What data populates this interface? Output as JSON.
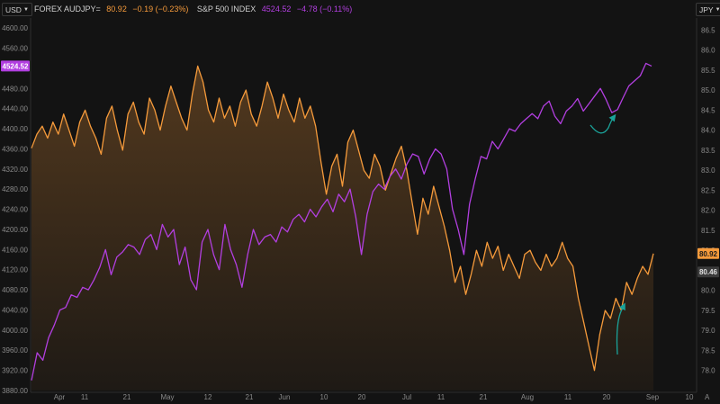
{
  "header": {
    "left_unit": "USD",
    "right_unit": "JPY",
    "corner_letter": "A"
  },
  "legend": {
    "aud": {
      "name": "FOREX AUDJPY=",
      "value": "80.92",
      "change": "−0.19 (−0.23%)",
      "color": "#f59a3b"
    },
    "spx": {
      "name": "S&P 500 INDEX",
      "value": "4524.52",
      "change": "−4.78 (−0.11%)",
      "color": "#b23fe0"
    }
  },
  "badges": {
    "spx_last": "4524.52",
    "aud_last": "80.92",
    "aud_ref": "80.46"
  },
  "annotation_color": "#1aa39a",
  "chart_data": {
    "type": "line",
    "x_labels": [
      "Apr",
      "11",
      "21",
      "May",
      "12",
      "21",
      "Jun",
      "10",
      "20",
      "Jul",
      "11",
      "21",
      "Aug",
      "11",
      "20",
      "Sep",
      "10"
    ],
    "left_axis": {
      "ticks": [
        "3880.00",
        "3920.00",
        "3960.00",
        "4000.00",
        "4040.00",
        "4080.00",
        "4120.00",
        "4160.00",
        "4200.00",
        "4240.00",
        "4280.00",
        "4320.00",
        "4360.00",
        "4400.00",
        "4440.00",
        "4480.00",
        "4520.00",
        "4560.00",
        "4600.00"
      ],
      "range": [
        3880,
        4620
      ]
    },
    "right_axis": {
      "ticks": [
        "78.0",
        "78.5",
        "79.0",
        "79.5",
        "80.0",
        "80.5",
        "81.0",
        "81.5",
        "82.0",
        "82.5",
        "83.0",
        "83.5",
        "84.0",
        "84.5",
        "85.0",
        "85.5",
        "86.0",
        "86.5"
      ],
      "range": [
        77.5,
        86.8
      ]
    },
    "series": [
      {
        "name": "FOREX AUDJPY=",
        "axis": "right",
        "color": "#f59a3b",
        "fill": true,
        "values": [
          83.55,
          83.9,
          84.1,
          83.8,
          84.2,
          83.9,
          84.4,
          84.0,
          83.6,
          84.2,
          84.5,
          84.1,
          83.8,
          83.4,
          84.3,
          84.6,
          84.0,
          83.5,
          84.4,
          84.7,
          84.2,
          83.9,
          84.8,
          84.5,
          84.0,
          84.6,
          85.1,
          84.7,
          84.3,
          84.0,
          84.9,
          85.6,
          85.2,
          84.5,
          84.2,
          84.8,
          84.3,
          84.6,
          84.1,
          84.7,
          85.0,
          84.4,
          84.1,
          84.6,
          85.2,
          84.8,
          84.3,
          84.9,
          84.5,
          84.2,
          84.8,
          84.3,
          84.6,
          84.1,
          83.2,
          82.4,
          83.1,
          83.4,
          82.6,
          83.7,
          84.0,
          83.5,
          83.0,
          82.8,
          83.4,
          83.1,
          82.5,
          82.9,
          83.3,
          83.6,
          83.0,
          82.2,
          81.4,
          82.3,
          81.9,
          82.6,
          82.1,
          81.6,
          81.0,
          80.2,
          80.6,
          79.9,
          80.4,
          81.0,
          80.6,
          81.2,
          80.8,
          81.1,
          80.5,
          80.9,
          80.6,
          80.3,
          80.9,
          81.0,
          80.7,
          80.5,
          80.9,
          80.6,
          80.8,
          81.2,
          80.8,
          80.6,
          79.8,
          79.2,
          78.6,
          78.0,
          78.9,
          79.5,
          79.3,
          79.8,
          79.5,
          80.2,
          79.9,
          80.3,
          80.6,
          80.4,
          80.92
        ],
        "min": 78.0,
        "max": 85.6,
        "last": 80.92
      },
      {
        "name": "S&P 500 INDEX",
        "axis": "left",
        "color": "#b23fe0",
        "fill": false,
        "values": [
          3900,
          3955,
          3940,
          3985,
          4010,
          4040,
          4045,
          4070,
          4065,
          4085,
          4080,
          4100,
          4125,
          4160,
          4110,
          4145,
          4155,
          4170,
          4165,
          4150,
          4180,
          4190,
          4160,
          4210,
          4185,
          4200,
          4130,
          4165,
          4100,
          4080,
          4175,
          4200,
          4150,
          4120,
          4210,
          4160,
          4130,
          4085,
          4150,
          4200,
          4170,
          4185,
          4190,
          4175,
          4205,
          4195,
          4220,
          4230,
          4215,
          4240,
          4225,
          4245,
          4260,
          4235,
          4270,
          4255,
          4280,
          4225,
          4150,
          4230,
          4275,
          4290,
          4280,
          4305,
          4320,
          4300,
          4330,
          4350,
          4345,
          4310,
          4340,
          4360,
          4350,
          4320,
          4240,
          4200,
          4150,
          4250,
          4300,
          4345,
          4340,
          4375,
          4360,
          4380,
          4400,
          4395,
          4410,
          4420,
          4430,
          4420,
          4445,
          4455,
          4425,
          4410,
          4435,
          4445,
          4460,
          4435,
          4450,
          4465,
          4480,
          4458,
          4432,
          4438,
          4462,
          4485,
          4495,
          4505,
          4530,
          4524.52
        ],
        "min": 3900,
        "max": 4530,
        "last": 4524.52
      }
    ],
    "grid": false,
    "legend_position": "top-left",
    "annotations": [
      {
        "type": "curved-arrow",
        "series": "S&P 500 INDEX",
        "x_label": "20",
        "direction": "up"
      },
      {
        "type": "curved-arrow",
        "series": "FOREX AUDJPY=",
        "x_label": "20",
        "direction": "up"
      }
    ]
  }
}
